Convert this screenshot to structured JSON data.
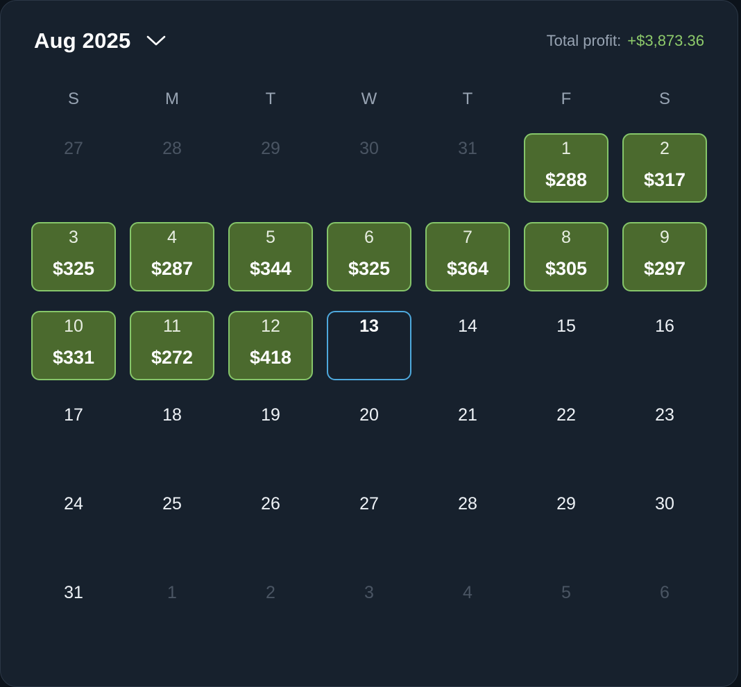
{
  "header": {
    "month_label": "Aug 2025",
    "profit_label": "Total profit:",
    "profit_value": "+$3,873.36",
    "dropdown_icon": "chevron-down-icon"
  },
  "colors": {
    "card_background": "#17212d",
    "profit_green": "#8ecb6b",
    "profit_cell_fill": "#4b6a2e",
    "profit_cell_border": "#86c66a",
    "today_border": "#4ea9dd"
  },
  "weekdays": [
    "S",
    "M",
    "T",
    "W",
    "T",
    "F",
    "S"
  ],
  "weeks": [
    [
      {
        "day": "27",
        "state": "outside",
        "amount": ""
      },
      {
        "day": "28",
        "state": "outside",
        "amount": ""
      },
      {
        "day": "29",
        "state": "outside",
        "amount": ""
      },
      {
        "day": "30",
        "state": "outside",
        "amount": ""
      },
      {
        "day": "31",
        "state": "outside",
        "amount": ""
      },
      {
        "day": "1",
        "state": "profit",
        "amount": "$288"
      },
      {
        "day": "2",
        "state": "profit",
        "amount": "$317"
      }
    ],
    [
      {
        "day": "3",
        "state": "profit",
        "amount": "$325"
      },
      {
        "day": "4",
        "state": "profit",
        "amount": "$287"
      },
      {
        "day": "5",
        "state": "profit",
        "amount": "$344"
      },
      {
        "day": "6",
        "state": "profit",
        "amount": "$325"
      },
      {
        "day": "7",
        "state": "profit",
        "amount": "$364"
      },
      {
        "day": "8",
        "state": "profit",
        "amount": "$305"
      },
      {
        "day": "9",
        "state": "profit",
        "amount": "$297"
      }
    ],
    [
      {
        "day": "10",
        "state": "profit",
        "amount": "$331"
      },
      {
        "day": "11",
        "state": "profit",
        "amount": "$272"
      },
      {
        "day": "12",
        "state": "profit",
        "amount": "$418"
      },
      {
        "day": "13",
        "state": "today",
        "amount": ""
      },
      {
        "day": "14",
        "state": "current",
        "amount": ""
      },
      {
        "day": "15",
        "state": "current",
        "amount": ""
      },
      {
        "day": "16",
        "state": "current",
        "amount": ""
      }
    ],
    [
      {
        "day": "17",
        "state": "current",
        "amount": ""
      },
      {
        "day": "18",
        "state": "current",
        "amount": ""
      },
      {
        "day": "19",
        "state": "current",
        "amount": ""
      },
      {
        "day": "20",
        "state": "current",
        "amount": ""
      },
      {
        "day": "21",
        "state": "current",
        "amount": ""
      },
      {
        "day": "22",
        "state": "current",
        "amount": ""
      },
      {
        "day": "23",
        "state": "current",
        "amount": ""
      }
    ],
    [
      {
        "day": "24",
        "state": "current",
        "amount": ""
      },
      {
        "day": "25",
        "state": "current",
        "amount": ""
      },
      {
        "day": "26",
        "state": "current",
        "amount": ""
      },
      {
        "day": "27",
        "state": "current",
        "amount": ""
      },
      {
        "day": "28",
        "state": "current",
        "amount": ""
      },
      {
        "day": "29",
        "state": "current",
        "amount": ""
      },
      {
        "day": "30",
        "state": "current",
        "amount": ""
      }
    ],
    [
      {
        "day": "31",
        "state": "current",
        "amount": ""
      },
      {
        "day": "1",
        "state": "outside",
        "amount": ""
      },
      {
        "day": "2",
        "state": "outside",
        "amount": ""
      },
      {
        "day": "3",
        "state": "outside",
        "amount": ""
      },
      {
        "day": "4",
        "state": "outside",
        "amount": ""
      },
      {
        "day": "5",
        "state": "outside",
        "amount": ""
      },
      {
        "day": "6",
        "state": "outside",
        "amount": ""
      }
    ]
  ]
}
